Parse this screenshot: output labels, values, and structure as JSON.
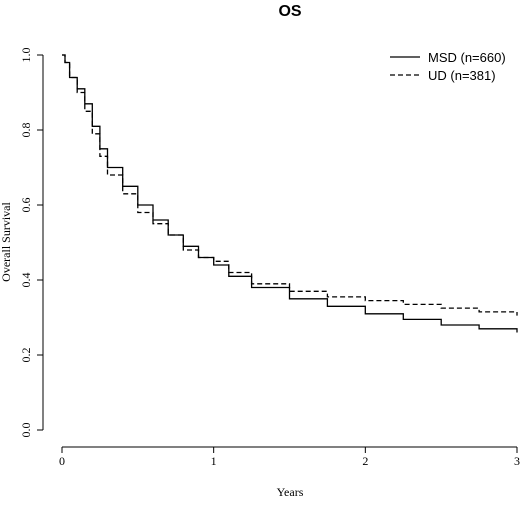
{
  "chart_data": {
    "type": "line",
    "title": "OS",
    "xlabel": "Years",
    "ylabel": "Overall Survival",
    "xlim": [
      0,
      3
    ],
    "ylim": [
      0,
      1
    ],
    "x_ticks": [
      "0",
      "1",
      "2",
      "3"
    ],
    "y_ticks": [
      "0.0",
      "0.2",
      "0.4",
      "0.6",
      "0.8",
      "1.0"
    ],
    "grid": false,
    "legend_position": "top-right",
    "series": [
      {
        "name": "MSD (n=660)",
        "style": "solid",
        "x": [
          0,
          0.02,
          0.05,
          0.1,
          0.15,
          0.2,
          0.25,
          0.3,
          0.4,
          0.5,
          0.6,
          0.7,
          0.8,
          0.9,
          1.0,
          1.1,
          1.25,
          1.5,
          1.75,
          2.0,
          2.25,
          2.5,
          2.75,
          3.0
        ],
        "values": [
          1.0,
          0.98,
          0.94,
          0.91,
          0.87,
          0.81,
          0.75,
          0.7,
          0.65,
          0.6,
          0.56,
          0.52,
          0.49,
          0.46,
          0.44,
          0.41,
          0.38,
          0.35,
          0.33,
          0.31,
          0.295,
          0.28,
          0.27,
          0.26
        ]
      },
      {
        "name": "UD (n=381)",
        "style": "dashed",
        "x": [
          0,
          0.02,
          0.05,
          0.1,
          0.15,
          0.2,
          0.25,
          0.3,
          0.4,
          0.5,
          0.6,
          0.7,
          0.8,
          0.9,
          1.0,
          1.1,
          1.25,
          1.5,
          1.75,
          2.0,
          2.25,
          2.5,
          2.75,
          3.0
        ],
        "values": [
          1.0,
          0.98,
          0.94,
          0.9,
          0.85,
          0.79,
          0.73,
          0.68,
          0.63,
          0.58,
          0.55,
          0.52,
          0.48,
          0.46,
          0.45,
          0.42,
          0.39,
          0.37,
          0.355,
          0.345,
          0.335,
          0.325,
          0.315,
          0.305
        ]
      }
    ]
  }
}
